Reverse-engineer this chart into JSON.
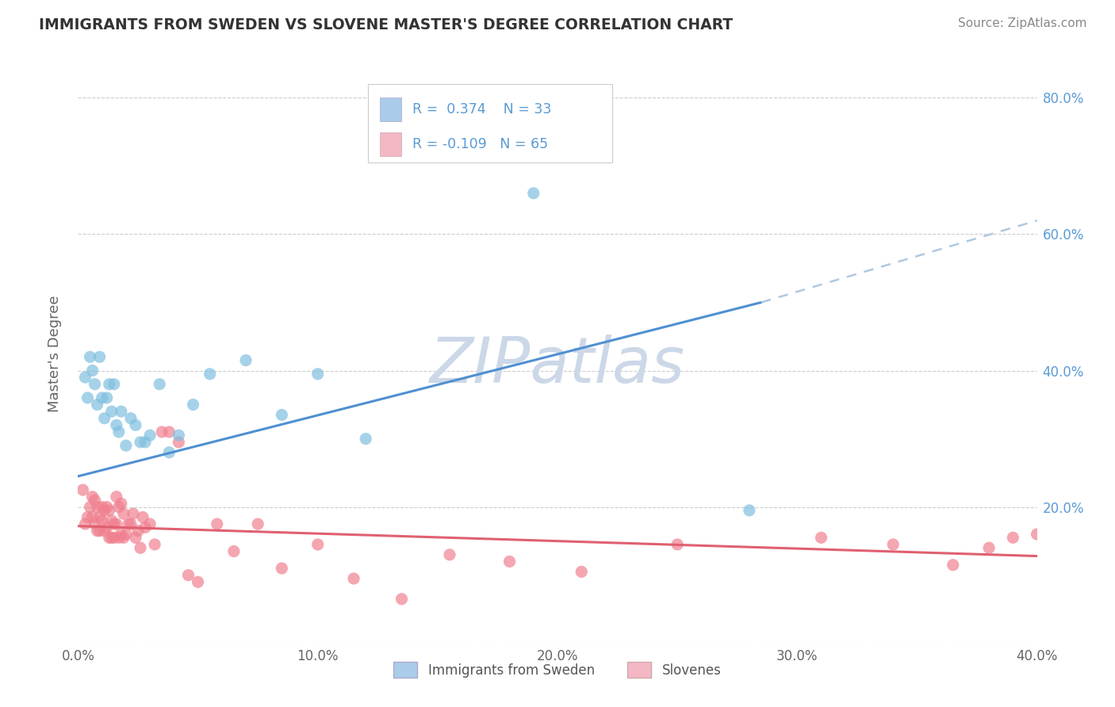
{
  "title": "IMMIGRANTS FROM SWEDEN VS SLOVENE MASTER'S DEGREE CORRELATION CHART",
  "source": "Source: ZipAtlas.com",
  "ylabel": "Master's Degree",
  "xlim": [
    0.0,
    0.4
  ],
  "ylim": [
    0.0,
    0.85
  ],
  "x_ticks": [
    0.0,
    0.1,
    0.2,
    0.3,
    0.4
  ],
  "x_tick_labels": [
    "0.0%",
    "10.0%",
    "20.0%",
    "30.0%",
    "40.0%"
  ],
  "y_ticks": [
    0.2,
    0.4,
    0.6,
    0.8
  ],
  "y_tick_labels_right": [
    "20.0%",
    "40.0%",
    "60.0%",
    "80.0%"
  ],
  "r_sweden": 0.374,
  "n_sweden": 33,
  "r_slovene": -0.109,
  "n_slovene": 65,
  "sweden_dot_color": "#7fbfdf",
  "slovene_dot_color": "#f08090",
  "sweden_legend_color": "#aacce8",
  "slovene_legend_color": "#f4b8c4",
  "trend_sweden_color": "#5090d0",
  "trend_slovene_color": "#e06070",
  "trend_extended_color": "#b0c8e0",
  "background_color": "#ffffff",
  "grid_color": "#c8c8c8",
  "watermark_color": "#ccd8e8",
  "sweden_trend_x0": 0.0,
  "sweden_trend_y0": 0.245,
  "sweden_trend_x1": 0.285,
  "sweden_trend_y1": 0.5,
  "sweden_trend_ext_x1": 0.4,
  "sweden_trend_ext_y1": 0.62,
  "slovene_trend_x0": 0.0,
  "slovene_trend_y0": 0.172,
  "slovene_trend_x1": 0.4,
  "slovene_trend_y1": 0.128,
  "sweden_points_x": [
    0.003,
    0.004,
    0.005,
    0.006,
    0.007,
    0.008,
    0.009,
    0.01,
    0.011,
    0.012,
    0.013,
    0.014,
    0.015,
    0.016,
    0.017,
    0.018,
    0.02,
    0.022,
    0.024,
    0.026,
    0.028,
    0.03,
    0.034,
    0.038,
    0.042,
    0.048,
    0.055,
    0.07,
    0.085,
    0.1,
    0.12,
    0.19,
    0.28
  ],
  "sweden_points_y": [
    0.39,
    0.36,
    0.42,
    0.4,
    0.38,
    0.35,
    0.42,
    0.36,
    0.33,
    0.36,
    0.38,
    0.34,
    0.38,
    0.32,
    0.31,
    0.34,
    0.29,
    0.33,
    0.32,
    0.295,
    0.295,
    0.305,
    0.38,
    0.28,
    0.305,
    0.35,
    0.395,
    0.415,
    0.335,
    0.395,
    0.3,
    0.66,
    0.195
  ],
  "slovene_points_x": [
    0.002,
    0.003,
    0.004,
    0.005,
    0.006,
    0.006,
    0.007,
    0.007,
    0.008,
    0.008,
    0.009,
    0.009,
    0.01,
    0.01,
    0.011,
    0.011,
    0.012,
    0.012,
    0.013,
    0.013,
    0.014,
    0.014,
    0.015,
    0.015,
    0.016,
    0.016,
    0.017,
    0.017,
    0.018,
    0.018,
    0.019,
    0.019,
    0.02,
    0.021,
    0.022,
    0.023,
    0.024,
    0.025,
    0.026,
    0.027,
    0.028,
    0.03,
    0.032,
    0.035,
    0.038,
    0.042,
    0.046,
    0.05,
    0.058,
    0.065,
    0.075,
    0.085,
    0.1,
    0.115,
    0.135,
    0.155,
    0.18,
    0.21,
    0.25,
    0.31,
    0.34,
    0.365,
    0.38,
    0.39,
    0.4
  ],
  "slovene_points_y": [
    0.225,
    0.175,
    0.185,
    0.2,
    0.215,
    0.185,
    0.21,
    0.175,
    0.2,
    0.165,
    0.185,
    0.165,
    0.2,
    0.18,
    0.195,
    0.165,
    0.2,
    0.17,
    0.195,
    0.155,
    0.18,
    0.155,
    0.175,
    0.155,
    0.215,
    0.175,
    0.2,
    0.155,
    0.205,
    0.16,
    0.19,
    0.155,
    0.16,
    0.175,
    0.175,
    0.19,
    0.155,
    0.165,
    0.14,
    0.185,
    0.17,
    0.175,
    0.145,
    0.31,
    0.31,
    0.295,
    0.1,
    0.09,
    0.175,
    0.135,
    0.175,
    0.11,
    0.145,
    0.095,
    0.065,
    0.13,
    0.12,
    0.105,
    0.145,
    0.155,
    0.145,
    0.115,
    0.14,
    0.155,
    0.16
  ]
}
